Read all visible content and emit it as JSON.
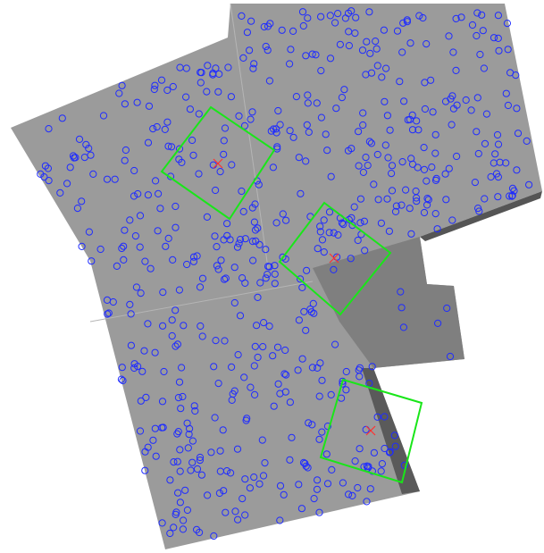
{
  "image": {
    "kind": "astronomical mosaic image with source and footprint overlays",
    "colors": {
      "background": "#ffffff",
      "field": "#9a9a9a",
      "field_noisy": "#7d7d7d",
      "sources": "#1f2cff",
      "footprints": "#19e619",
      "markers": "#ff3030"
    },
    "overlays": {
      "source_marker_shape": "circle",
      "footprint_shape": "square",
      "center_marker_shape": "x"
    }
  }
}
